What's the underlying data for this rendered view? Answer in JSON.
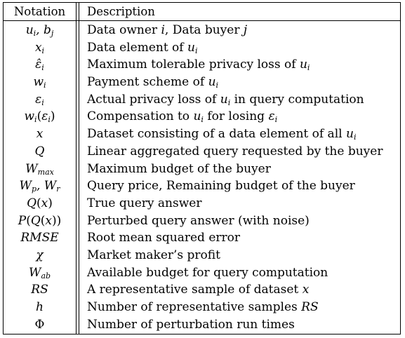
{
  "table": {
    "headers": {
      "notation": "Notation",
      "description": "Description"
    },
    "rows": [
      {
        "notation_html": "u<sub>i</sub>, b<sub>j</sub>",
        "description_html": "Data owner <span class=\"math\">i</span>, Data buyer <span class=\"math\">j</span>"
      },
      {
        "notation_html": "x<sub>i</sub>",
        "description_html": "Data element of <span class=\"math\">u<sub>i</sub></span>"
      },
      {
        "notation_html": "ε̂<sub>i</sub>",
        "description_html": "Maximum tolerable privacy loss of <span class=\"math\">u<sub>i</sub></span>"
      },
      {
        "notation_html": "w<sub>i</sub>",
        "description_html": "Payment scheme of <span class=\"math\">u<sub>i</sub></span>"
      },
      {
        "notation_html": "ε<sub>i</sub>",
        "description_html": "Actual privacy loss of <span class=\"math\">u<sub>i</sub></span> in query computation"
      },
      {
        "notation_html": "w<sub>i</sub><span class=\"up\">(</span>ε<sub>i</sub><span class=\"up\">)</span>",
        "description_html": "Compensation to <span class=\"math\">u<sub>i</sub></span> for losing <span class=\"math\">ε<sub>i</sub></span>"
      },
      {
        "notation_html": "x",
        "description_html": "Dataset consisting of a data element of all <span class=\"math\">u<sub>i</sub></span>"
      },
      {
        "notation_html": "Q",
        "description_html": "Linear aggregated query requested by the buyer"
      },
      {
        "notation_html": "W<sub>max</sub>",
        "description_html": "Maximum budget of the buyer"
      },
      {
        "notation_html": "W<sub>p</sub>, W<sub>r</sub>",
        "description_html": "Query price, Remaining budget of the buyer"
      },
      {
        "notation_html": "Q<span class=\"up\">(</span>x<span class=\"up\">)</span>",
        "description_html": "True query answer"
      },
      {
        "notation_html": "P<span class=\"up\">(</span>Q<span class=\"up\">(</span>x<span class=\"up\">))</span>",
        "description_html": "Perturbed query answer (with noise)"
      },
      {
        "notation_html": "RMSE",
        "description_html": "Root mean squared error"
      },
      {
        "notation_html": "χ",
        "description_html": "Market maker’s profit"
      },
      {
        "notation_html": "W<sub>ab</sub>",
        "description_html": "Available budget for query computation"
      },
      {
        "notation_html": "RS",
        "description_html": "A representative sample of dataset <span class=\"math\">x</span>"
      },
      {
        "notation_html": "h",
        "description_html": "Number of representative samples <span class=\"math\">RS</span>"
      },
      {
        "notation_html": "<span class=\"up\">Φ</span>",
        "description_html": "Number of perturbation run times"
      }
    ]
  }
}
